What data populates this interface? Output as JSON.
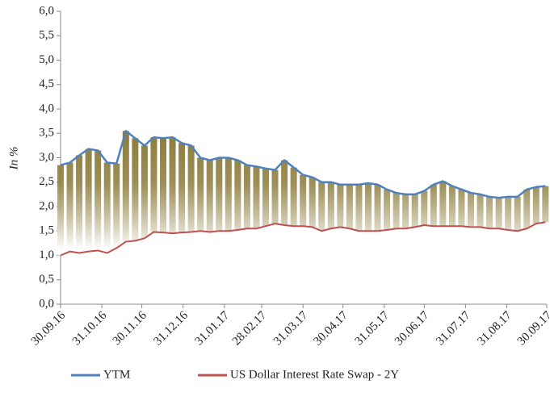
{
  "chart_data": {
    "type": "line",
    "y_label": "In %",
    "x": [
      "30.09.16",
      "07.10.16",
      "14.10.16",
      "21.10.16",
      "28.10.16",
      "04.11.16",
      "11.11.16",
      "18.11.16",
      "25.11.16",
      "02.12.16",
      "09.12.16",
      "16.12.16",
      "23.12.16",
      "30.12.16",
      "06.01.17",
      "13.01.17",
      "20.01.17",
      "27.01.17",
      "03.02.17",
      "10.02.17",
      "17.02.17",
      "24.02.17",
      "03.03.17",
      "10.03.17",
      "17.03.17",
      "24.03.17",
      "31.03.17",
      "07.04.17",
      "14.04.17",
      "21.04.17",
      "28.04.17",
      "05.05.17",
      "12.05.17",
      "19.05.17",
      "26.05.17",
      "02.06.17",
      "09.06.17",
      "16.06.17",
      "23.06.17",
      "30.06.17",
      "07.07.17",
      "14.07.17",
      "21.07.17",
      "28.07.17",
      "04.08.17",
      "11.08.17",
      "18.08.17",
      "25.08.17",
      "01.09.17",
      "08.09.17",
      "15.09.17",
      "22.09.17",
      "29.09.17"
    ],
    "series": [
      {
        "name": "YTM",
        "color": "#4f81bd",
        "values": [
          2.85,
          2.9,
          3.05,
          3.18,
          3.15,
          2.9,
          2.88,
          3.55,
          3.4,
          3.25,
          3.42,
          3.4,
          3.42,
          3.3,
          3.25,
          3.0,
          2.95,
          3.0,
          3.0,
          2.95,
          2.85,
          2.82,
          2.78,
          2.75,
          2.95,
          2.8,
          2.65,
          2.6,
          2.5,
          2.5,
          2.45,
          2.45,
          2.45,
          2.48,
          2.45,
          2.35,
          2.28,
          2.25,
          2.25,
          2.32,
          2.45,
          2.52,
          2.42,
          2.35,
          2.28,
          2.25,
          2.2,
          2.18,
          2.2,
          2.2,
          2.35,
          2.4,
          2.42
        ]
      },
      {
        "name": "US Dollar Interest Rate Swap - 2Y",
        "color": "#c0504d",
        "values": [
          1.0,
          1.08,
          1.05,
          1.08,
          1.1,
          1.05,
          1.15,
          1.28,
          1.3,
          1.35,
          1.48,
          1.47,
          1.45,
          1.47,
          1.48,
          1.5,
          1.48,
          1.5,
          1.5,
          1.52,
          1.55,
          1.55,
          1.6,
          1.65,
          1.62,
          1.6,
          1.6,
          1.58,
          1.5,
          1.55,
          1.58,
          1.55,
          1.5,
          1.5,
          1.5,
          1.52,
          1.55,
          1.55,
          1.58,
          1.62,
          1.6,
          1.6,
          1.6,
          1.6,
          1.58,
          1.58,
          1.55,
          1.55,
          1.52,
          1.5,
          1.55,
          1.65,
          1.68
        ]
      }
    ],
    "fill_color": "#8b7b3a",
    "xlim": [
      "30.09.16",
      "30.09.17"
    ],
    "xticks": [
      "30.09.16",
      "31.10.16",
      "30.11.16",
      "31.12.16",
      "31.01.17",
      "28.02.17",
      "31.03.17",
      "30.04.17",
      "31.05.17",
      "30.06.17",
      "31.07.17",
      "31.08.17",
      "30.09.17"
    ],
    "ylim": [
      0,
      6
    ],
    "yticks": [
      {
        "value": 0,
        "label": "0,0"
      },
      {
        "value": 0.5,
        "label": "0,5"
      },
      {
        "value": 1,
        "label": "1,0"
      },
      {
        "value": 1.5,
        "label": "1,5"
      },
      {
        "value": 2,
        "label": "2,0"
      },
      {
        "value": 2.5,
        "label": "2,5"
      },
      {
        "value": 3,
        "label": "3,0"
      },
      {
        "value": 3.5,
        "label": "3,5"
      },
      {
        "value": 4,
        "label": "4,0"
      },
      {
        "value": 4.5,
        "label": "4,5"
      },
      {
        "value": 5,
        "label": "5,0"
      },
      {
        "value": 5.5,
        "label": "5,5"
      },
      {
        "value": 6,
        "label": "6,0"
      }
    ]
  }
}
